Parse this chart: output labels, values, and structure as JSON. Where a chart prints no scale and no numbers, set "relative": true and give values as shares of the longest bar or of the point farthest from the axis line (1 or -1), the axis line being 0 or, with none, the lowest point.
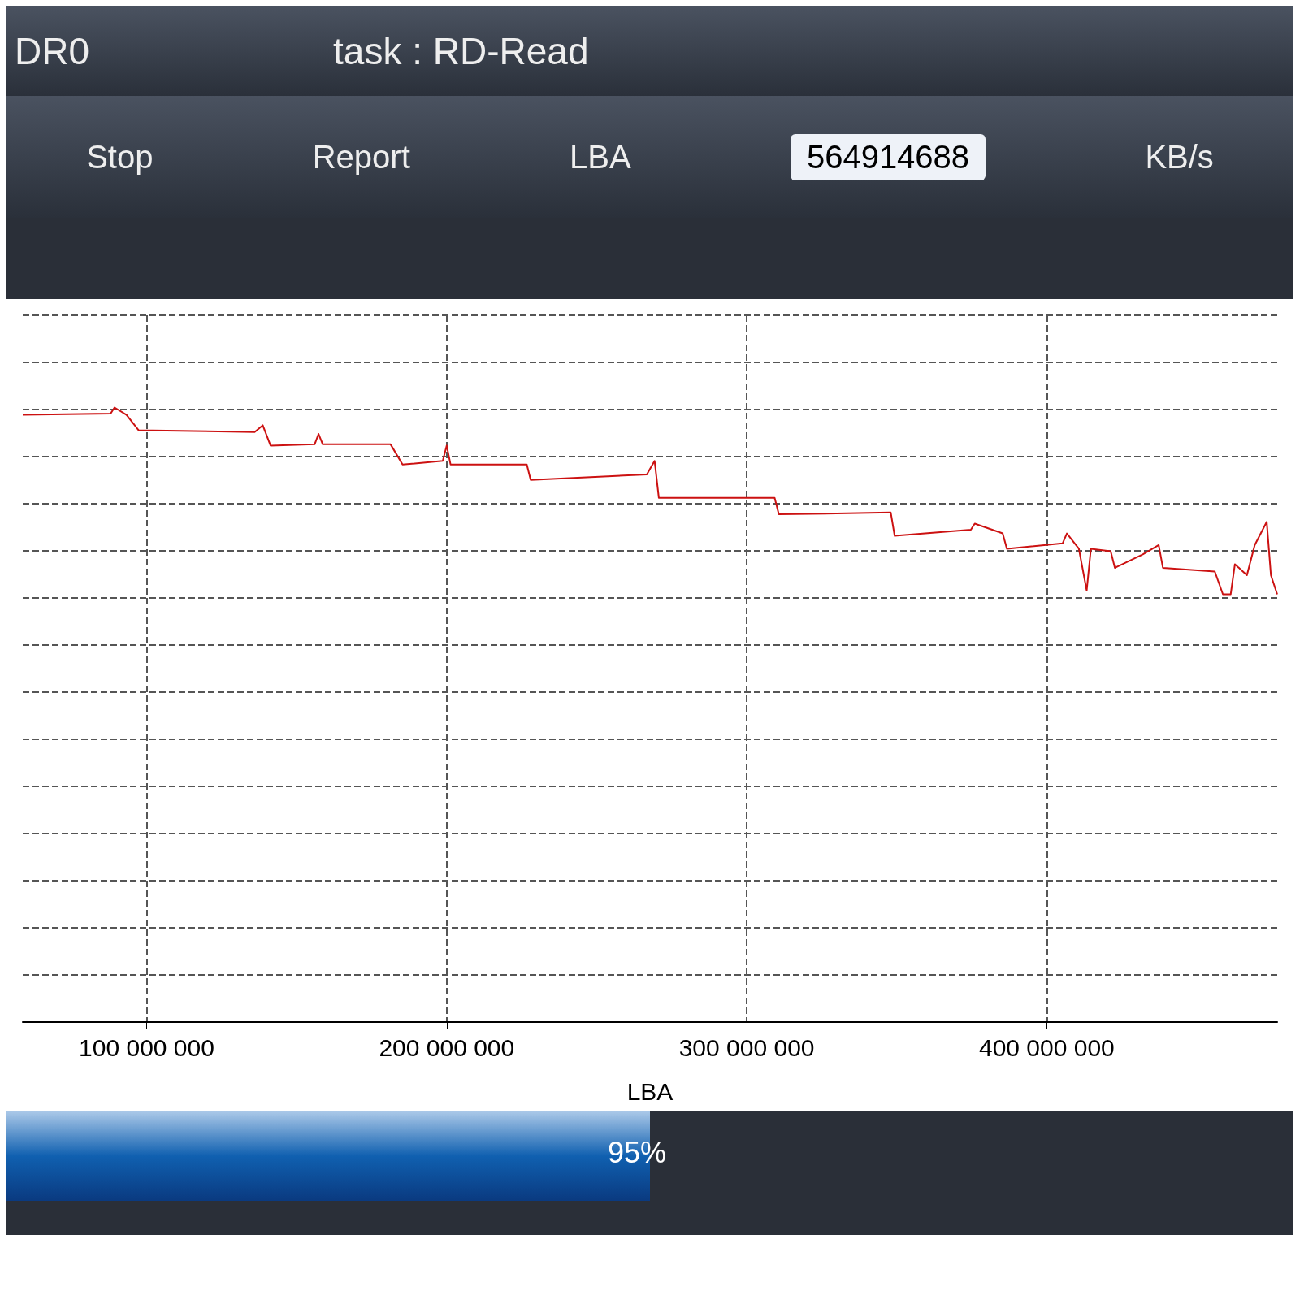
{
  "chart_data": {
    "type": "line",
    "relative": true,
    "xlabel": "LBA",
    "annotations": [
      "DR0",
      "task : RD-Read",
      "Stop",
      "Report",
      "LBA",
      "564914688",
      "KB/s",
      "95%"
    ],
    "xlim": [
      58700000,
      476800000
    ],
    "xticks": [
      {
        "value": 100000000,
        "label": "100 000 000"
      },
      {
        "value": 200000000,
        "label": "200 000 000"
      },
      {
        "value": 300000000,
        "label": "300 000 000"
      },
      {
        "value": 400000000,
        "label": "400 000 000"
      }
    ],
    "grid": true,
    "line_style": "solid",
    "marker": "none",
    "series": [
      {
        "color": "#cc1111",
        "x": [
          58700000,
          88000000,
          89300000,
          93300000,
          97300000,
          136000000,
          138700000,
          141300000,
          156000000,
          157300000,
          158700000,
          181300000,
          185300000,
          198700000,
          200000000,
          201300000,
          226700000,
          228000000,
          266700000,
          269300000,
          270700000,
          309300000,
          310700000,
          348000000,
          349300000,
          374700000,
          376000000,
          385300000,
          386700000,
          405300000,
          406700000,
          410700000,
          413300000,
          414700000,
          421300000,
          422700000,
          432000000,
          437300000,
          438700000,
          456000000,
          458700000,
          461300000,
          462700000,
          466700000,
          469300000,
          473300000,
          474700000,
          476800000
        ],
        "values": [
          0.988,
          0.99,
          1.0,
          0.988,
          0.963,
          0.96,
          0.971,
          0.938,
          0.94,
          0.957,
          0.94,
          0.94,
          0.907,
          0.913,
          0.938,
          0.907,
          0.907,
          0.882,
          0.891,
          0.913,
          0.853,
          0.853,
          0.826,
          0.829,
          0.791,
          0.801,
          0.811,
          0.795,
          0.77,
          0.779,
          0.795,
          0.77,
          0.702,
          0.77,
          0.766,
          0.739,
          0.761,
          0.776,
          0.739,
          0.733,
          0.696,
          0.696,
          0.745,
          0.727,
          0.776,
          0.814,
          0.727,
          0.696
        ]
      }
    ]
  }
}
